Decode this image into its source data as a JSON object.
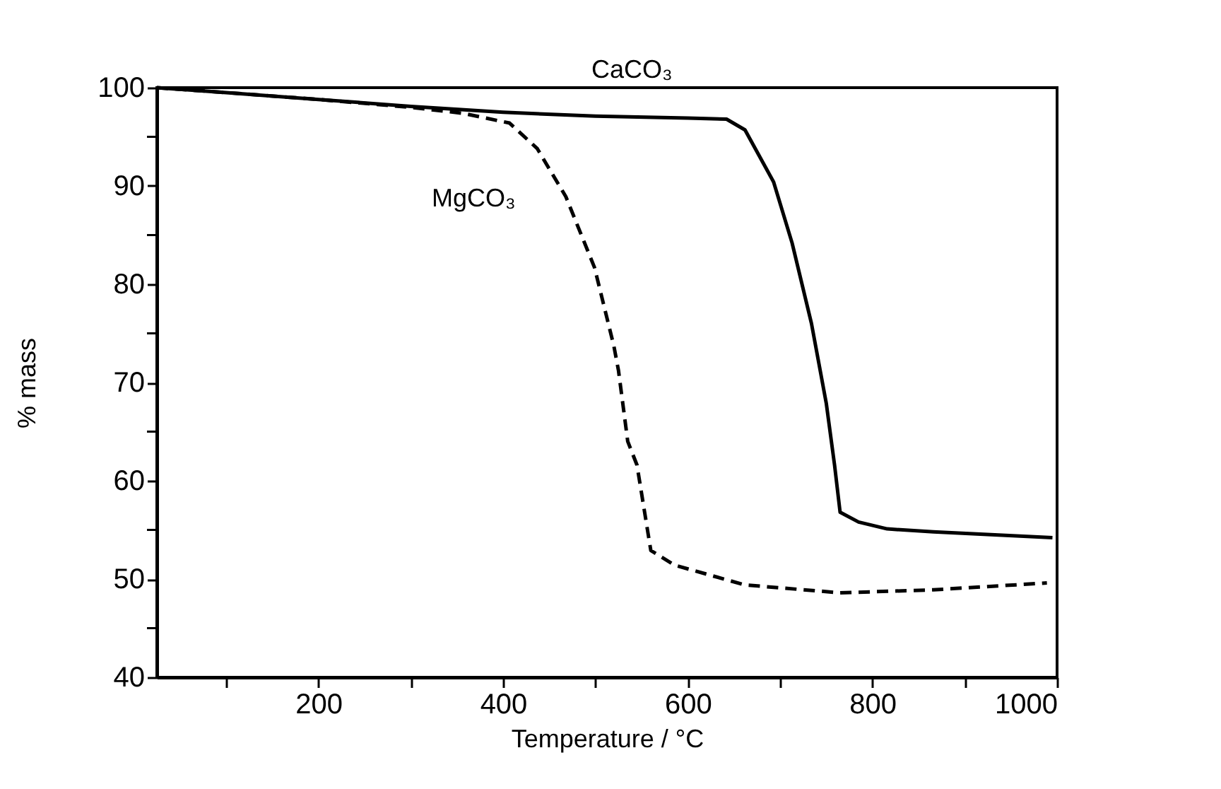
{
  "chart_data": {
    "type": "line",
    "xlabel": "Temperature / °C",
    "ylabel": "% mass",
    "xlim": [
      25,
      1000
    ],
    "ylim": [
      40,
      100
    ],
    "xticks": [
      {
        "value": 100,
        "label": null
      },
      200,
      {
        "value": 300,
        "label": null
      },
      400,
      {
        "value": 500,
        "label": null
      },
      600,
      {
        "value": 700,
        "label": null
      },
      800,
      {
        "value": 900,
        "label": null
      },
      1000
    ],
    "yticks": [
      40,
      {
        "value": 45,
        "label": null
      },
      50,
      {
        "value": 55,
        "label": null
      },
      60,
      {
        "value": 65,
        "label": null
      },
      70,
      {
        "value": 75,
        "label": null
      },
      80,
      {
        "value": 85,
        "label": null
      },
      90,
      {
        "value": 95,
        "label": null
      },
      100
    ],
    "grid": false,
    "marker": "none",
    "series": [
      {
        "name": "CaCO₃",
        "color": "#000000",
        "line_style": "solid",
        "x": [
          25,
          100,
          200,
          300,
          400,
          500,
          600,
          642,
          662,
          693,
          713,
          734,
          750,
          759,
          765,
          785,
          816,
          866,
          995
        ],
        "values": [
          100,
          99.5,
          98.8,
          98.1,
          97.5,
          97.1,
          96.9,
          96.8,
          95.7,
          90.4,
          84.2,
          76,
          67.9,
          61.6,
          56.8,
          55.8,
          55.1,
          54.8,
          54.2
        ]
      },
      {
        "name": "MgCO₃",
        "color": "#000000",
        "line_style": "dashed",
        "x": [
          25,
          100,
          200,
          300,
          356,
          407,
          437,
          468,
          499,
          520,
          525,
          535,
          545,
          560,
          586,
          662,
          765,
          866,
          989
        ],
        "values": [
          100,
          99.5,
          98.8,
          98,
          97.4,
          96.4,
          93.8,
          88.9,
          81.7,
          73.7,
          71.2,
          64,
          61.6,
          52.9,
          51.4,
          49.4,
          48.6,
          48.9,
          49.6
        ]
      }
    ]
  }
}
